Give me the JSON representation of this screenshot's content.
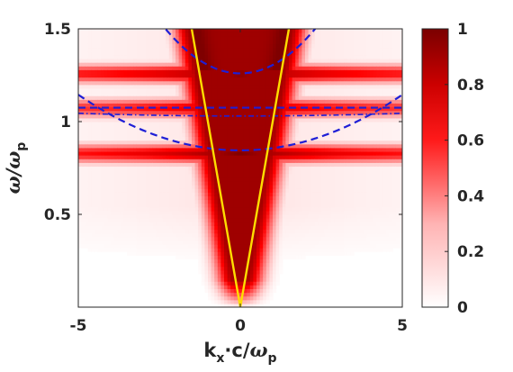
{
  "chart_data": {
    "type": "heatmap",
    "title": "",
    "colormap": "white-to-dark-red",
    "colors": {
      "low": "#ffffff",
      "mid": "#ff0000",
      "high": "#7f0000",
      "light_line": "#ffdd00",
      "dispersion_line": "#1f1fd6"
    },
    "xlabel": {
      "base": "k",
      "sub": "x",
      "dot": "·",
      "rest": "c/",
      "omega": "ω",
      "sub2": "p"
    },
    "ylabel": {
      "omega": "ω",
      "slash": "/",
      "omega2": "ω",
      "sub": "p"
    },
    "xlim": [
      -5,
      5
    ],
    "ylim": [
      0.0,
      1.5
    ],
    "xticks": [
      {
        "value": -5,
        "label": "-5"
      },
      {
        "value": 0,
        "label": "0"
      },
      {
        "value": 5,
        "label": "5"
      }
    ],
    "yticks": [
      {
        "value": 0.5,
        "label": "0.5"
      },
      {
        "value": 1.0,
        "label": "1"
      },
      {
        "value": 1.5,
        "label": "1.5"
      }
    ],
    "colorbar": {
      "range": [
        0,
        1
      ],
      "ticks": [
        {
          "value": 0,
          "label": "0"
        },
        {
          "value": 0.2,
          "label": "0.2"
        },
        {
          "value": 0.4,
          "label": "0.4"
        },
        {
          "value": 0.6,
          "label": "0.6"
        },
        {
          "value": 0.8,
          "label": "0.8"
        },
        {
          "value": 1,
          "label": "1"
        }
      ]
    },
    "bands": [
      {
        "omega": 1.26,
        "peak": 1.0
      },
      {
        "omega": 1.075,
        "peak": 0.85
      },
      {
        "omega": 0.83,
        "peak": 1.0
      }
    ],
    "light_line_slope": 1.0,
    "dashed_curves": [
      {
        "omega0": 1.26,
        "curvature": 0.045
      },
      {
        "omega0": 1.075,
        "curvature": 0.0
      },
      {
        "omega0": 0.845,
        "curvature": 0.012
      }
    ],
    "dashdot_curve": {
      "omega": 1.03,
      "rise_at_edges": 0.015
    }
  }
}
